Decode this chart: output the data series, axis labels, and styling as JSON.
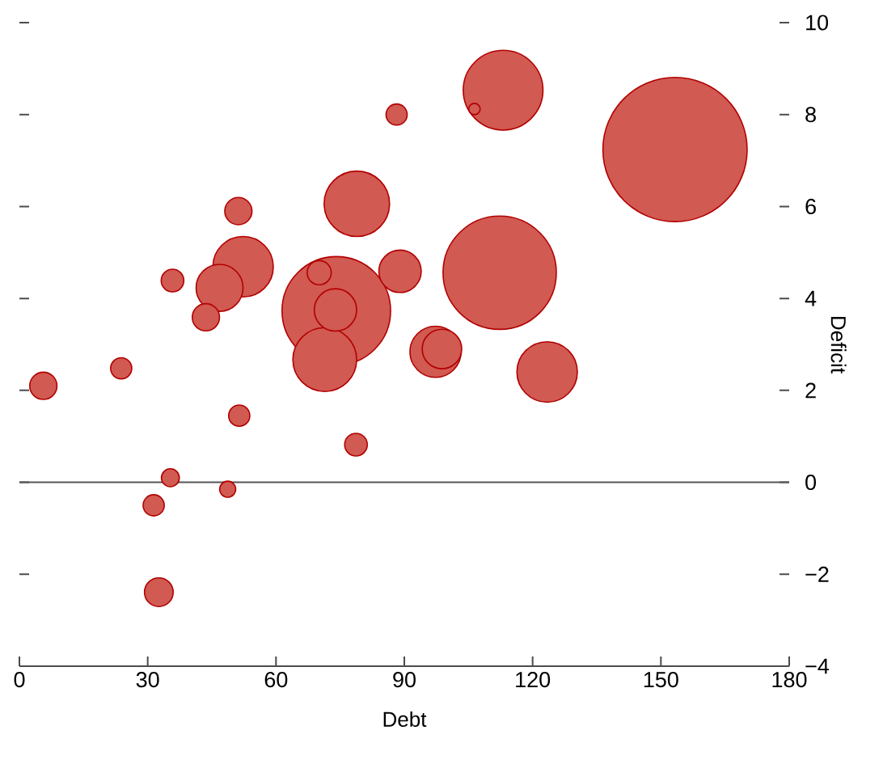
{
  "chart_data": {
    "type": "bubble",
    "xlabel": "Debt",
    "ylabel": "Deficit",
    "grid": false,
    "marker": "circle",
    "xlim": [
      0,
      180
    ],
    "xticks": [
      0,
      30,
      60,
      90,
      120,
      150,
      180
    ],
    "ylim": [
      -4,
      10
    ],
    "yticks": [
      {
        "value": -4,
        "label": "−4"
      },
      {
        "value": -2,
        "label": "−2"
      },
      0,
      2,
      4,
      6,
      8,
      10
    ],
    "ref_lines": [
      {
        "axis": "y",
        "value": 0,
        "color": "#555555"
      }
    ],
    "series": [
      {
        "color": "#d15a52",
        "x": [
          153.3,
          112.3,
          74.1,
          113.1,
          78.9,
          71.4,
          52.3,
          123.4,
          97.3,
          46.8,
          73.9,
          89.0,
          98.8,
          32.6,
          5.6,
          51.2,
          43.6,
          70.1,
          35.8,
          78.7,
          23.8,
          51.4,
          31.4,
          88.2,
          35.3,
          48.7,
          106.4
        ],
        "values": [
          7.24,
          4.56,
          3.73,
          8.53,
          6.06,
          2.67,
          4.69,
          2.4,
          2.84,
          4.23,
          3.75,
          4.59,
          2.9,
          -2.39,
          2.1,
          5.9,
          3.59,
          4.56,
          4.39,
          0.82,
          2.48,
          1.45,
          -0.5,
          8.0,
          0.1,
          -0.15,
          8.12
        ],
        "sizes": [
          1,
          0.62,
          0.57,
          0.31,
          0.21,
          0.2,
          0.18,
          0.18,
          0.13,
          0.11,
          0.09,
          0.09,
          0.08,
          0.065,
          0.06,
          0.06,
          0.06,
          0.05,
          0.04,
          0.04,
          0.036,
          0.036,
          0.036,
          0.036,
          0.028,
          0.024,
          0.015
        ]
      }
    ]
  }
}
